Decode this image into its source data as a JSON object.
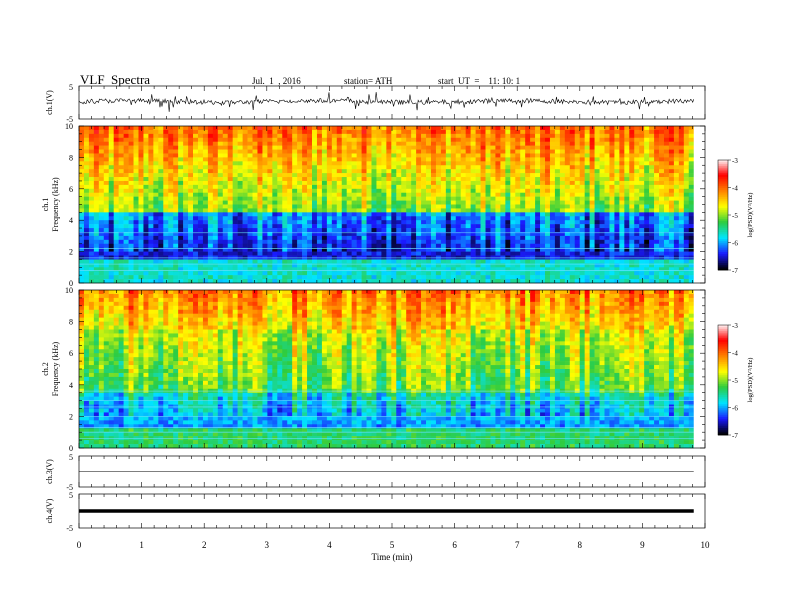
{
  "header": {
    "title": "VLF  Spectra",
    "date": "Jul.  1  , 2016",
    "station": "station= ATH",
    "start": "start  UT  =    11: 10: 1"
  },
  "chart_data": [
    {
      "type": "line",
      "id": "ch1_waveform",
      "ylabel": "ch.1(V)",
      "ylim": [
        -5,
        5
      ],
      "yticks": [
        "5",
        "-5"
      ],
      "baseline": 0.3,
      "color": "#000000"
    },
    {
      "type": "heatmap",
      "id": "ch1_spectrogram",
      "ylabel_top": "ch.1",
      "ylabel": "Frequency  (kHz)",
      "ylim": [
        0,
        10
      ],
      "yticks": [
        "0",
        "2",
        "4",
        "6",
        "8",
        "10"
      ],
      "colorbar": {
        "label": "log(PSD)(V²/Hz)",
        "range": [
          -7,
          -3
        ],
        "ticks": [
          "-3",
          "-4",
          "-5",
          "-6",
          "-7"
        ],
        "colors": [
          "#000000",
          "#1a1aff",
          "#00e5ff",
          "#2ecc40",
          "#ffff00",
          "#ff8000",
          "#ff0000",
          "#ffffff"
        ]
      }
    },
    {
      "type": "heatmap",
      "id": "ch2_spectrogram",
      "ylabel_top": "ch.2",
      "ylabel": "Frequency  (kHz)",
      "ylim": [
        0,
        10
      ],
      "yticks": [
        "0",
        "2",
        "4",
        "6",
        "8",
        "10"
      ],
      "colorbar": {
        "label": "log(PSD)(V²/Hz)",
        "range": [
          -7,
          -3
        ],
        "ticks": [
          "-3",
          "-4",
          "-5",
          "-6",
          "-7"
        ]
      }
    },
    {
      "type": "line",
      "id": "ch3_waveform",
      "ylabel": "ch.3(V)",
      "ylim": [
        -5,
        5
      ],
      "yticks": [
        "5",
        "-5"
      ],
      "baseline": 0
    },
    {
      "type": "line",
      "id": "ch4_waveform",
      "ylabel": "ch.4(V)",
      "ylim": [
        -5,
        5
      ],
      "yticks": [
        "5",
        "-5"
      ],
      "baseline": 0
    }
  ],
  "xaxis": {
    "label": "Time  (min)",
    "xlim": [
      0,
      10
    ],
    "ticks": [
      "0",
      "1",
      "2",
      "3",
      "4",
      "5",
      "6",
      "7",
      "8",
      "9",
      "10"
    ],
    "data_end": 9.82
  }
}
